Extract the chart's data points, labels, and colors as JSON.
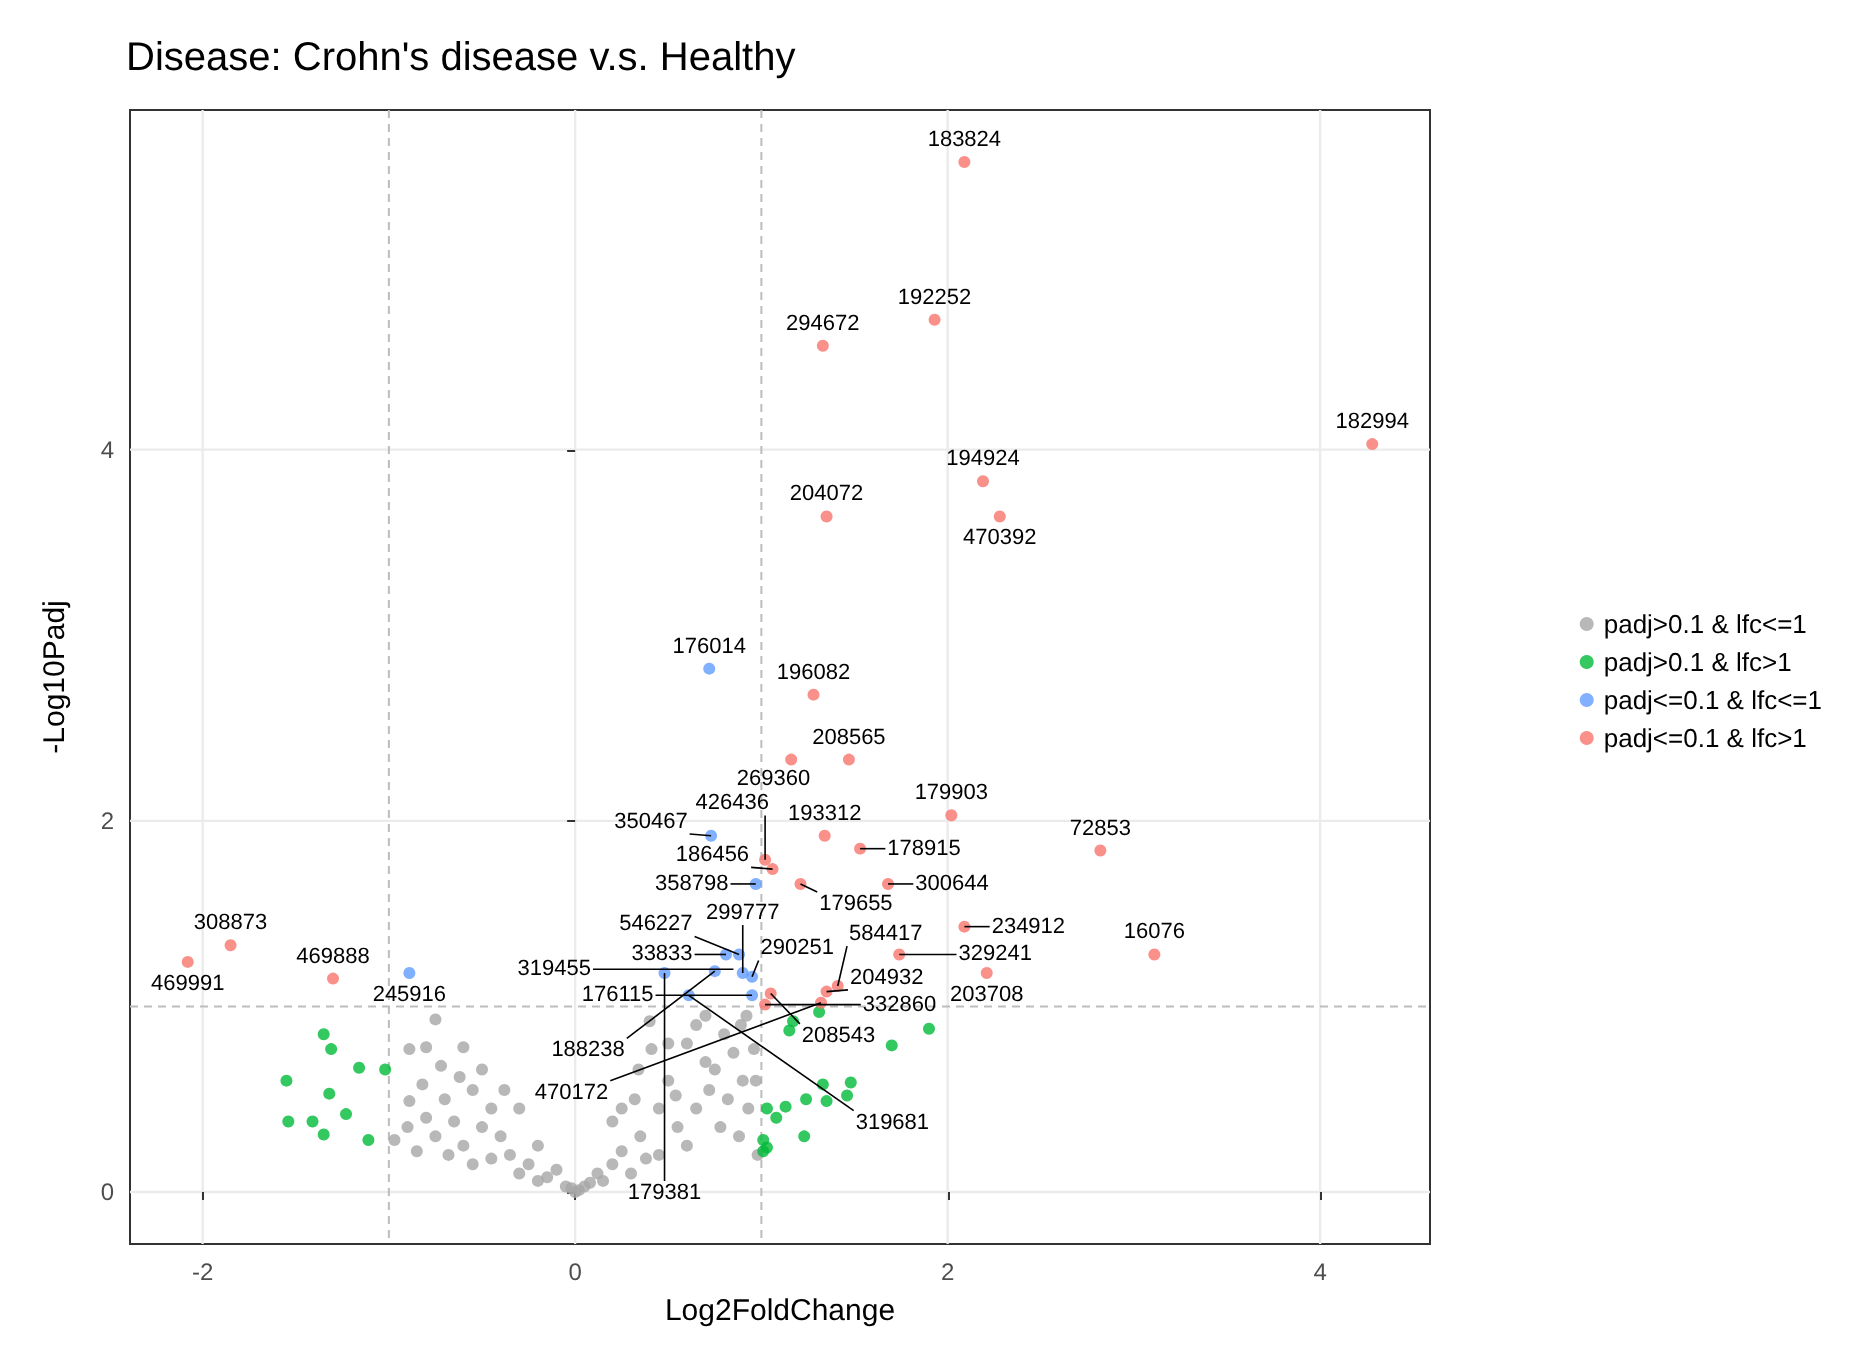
{
  "chart_data": {
    "type": "scatter",
    "title": "Disease: Crohn's disease v.s. Healthy",
    "xlabel": "Log2FoldChange",
    "ylabel": "-Log10Padj",
    "xlim": [
      -2.39,
      4.59
    ],
    "ylim": [
      -0.28,
      5.83
    ],
    "xticks": [
      -2,
      0,
      2,
      4
    ],
    "yticks": [
      0,
      2,
      4
    ],
    "grid": true,
    "legend": "right",
    "marker": "circle",
    "ref_lines": [
      {
        "axis": "x",
        "value": -1,
        "color": "#bdbdbd",
        "line_style": "dashed"
      },
      {
        "axis": "x",
        "value": 1,
        "color": "#bdbdbd",
        "line_style": "dashed"
      },
      {
        "axis": "y",
        "value": 1,
        "color": "#bdbdbd",
        "line_style": "dashed"
      }
    ],
    "series": [
      {
        "name": "padj>0.1 & lfc<=1",
        "color": "#a6a6a6",
        "x": [
          -0.97,
          -0.89,
          -0.89,
          -0.8,
          -0.75,
          -0.6,
          -0.5,
          -0.55,
          -0.7,
          -0.8,
          -0.9,
          -0.75,
          -0.65,
          -0.6,
          -0.5,
          -0.45,
          -0.4,
          -0.35,
          -0.3,
          -0.25,
          -0.2,
          -0.15,
          -0.1,
          -0.05,
          -0.45,
          -0.55,
          -0.68,
          -0.85,
          -0.3,
          -0.2,
          -0.38,
          -0.62,
          -0.72,
          -0.82,
          0,
          0.02,
          0.05,
          -0.02,
          0.08,
          0.12,
          0.15,
          0.2,
          0.2,
          0.25,
          0.3,
          0.34,
          0.35,
          0.4,
          0.41,
          0.45,
          0.45,
          0.5,
          0.54,
          0.55,
          0.6,
          0.6,
          0.65,
          0.65,
          0.7,
          0.72,
          0.75,
          0.78,
          0.8,
          0.82,
          0.85,
          0.88,
          0.89,
          0.9,
          0.93,
          0.96,
          0.97,
          0.98,
          0.25,
          0.32,
          0.38,
          0.5,
          0.7,
          0.92
        ],
        "values": [
          0.28,
          0.49,
          0.77,
          0.78,
          0.93,
          0.78,
          0.66,
          0.55,
          0.5,
          0.4,
          0.35,
          0.3,
          0.38,
          0.25,
          0.35,
          0.45,
          0.3,
          0.2,
          0.45,
          0.15,
          0.25,
          0.08,
          0.12,
          0.03,
          0.18,
          0.15,
          0.2,
          0.22,
          0.1,
          0.06,
          0.55,
          0.62,
          0.68,
          0.58,
          0,
          0.01,
          0.03,
          0.02,
          0.05,
          0.1,
          0.06,
          0.38,
          0.15,
          0.22,
          0.1,
          0.66,
          0.3,
          0.92,
          0.77,
          0.45,
          0.2,
          0.6,
          0.52,
          0.35,
          0.8,
          0.25,
          0.9,
          0.45,
          0.7,
          0.55,
          0.66,
          0.35,
          0.85,
          0.5,
          0.75,
          0.3,
          0.9,
          0.6,
          0.45,
          0.77,
          0.6,
          0.2,
          0.45,
          0.5,
          0.18,
          0.8,
          0.95,
          0.95
        ]
      },
      {
        "name": "padj>0.1 & lfc>1",
        "color": "#00ba38",
        "x": [
          -1.35,
          -1.31,
          -1.16,
          -1.02,
          -1.55,
          -1.32,
          -1.23,
          -1.54,
          -1.41,
          -1.35,
          -1.11,
          1.31,
          1.17,
          1.15,
          1.9,
          1.7,
          1.48,
          1.46,
          1.33,
          1.35,
          1.24,
          1.13,
          1.03,
          1.08,
          1.23,
          1.01,
          1.03,
          1.01
        ],
        "values": [
          0.85,
          0.77,
          0.67,
          0.66,
          0.6,
          0.53,
          0.42,
          0.38,
          0.38,
          0.31,
          0.28,
          0.97,
          0.92,
          0.87,
          0.88,
          0.79,
          0.59,
          0.52,
          0.58,
          0.49,
          0.5,
          0.46,
          0.45,
          0.4,
          0.3,
          0.28,
          0.24,
          0.22
        ]
      },
      {
        "name": "padj<=0.1 & lfc<=1",
        "color": "#619cff",
        "x": [
          0.72,
          0.73,
          0.97,
          0.81,
          0.88,
          0.75,
          0.48,
          0.9,
          0.95,
          0.95,
          0.61,
          -0.89
        ],
        "values": [
          2.82,
          1.92,
          1.66,
          1.28,
          1.28,
          1.19,
          1.18,
          1.18,
          1.16,
          1.06,
          1.06,
          1.18
        ]
      },
      {
        "name": "padj<=0.1 & lfc>1",
        "color": "#f8766d",
        "x": [
          2.09,
          1.93,
          1.33,
          4.28,
          2.19,
          2.28,
          1.35,
          1.28,
          1.16,
          1.47,
          2.02,
          1.34,
          1.53,
          2.82,
          1.06,
          1.02,
          1.21,
          1.68,
          2.09,
          1.74,
          3.11,
          2.21,
          1.05,
          1.41,
          1.35,
          1.32,
          1.02,
          -1.85,
          -2.08,
          -1.3
        ],
        "values": [
          5.55,
          4.7,
          4.56,
          4.03,
          3.83,
          3.64,
          3.64,
          2.68,
          2.33,
          2.33,
          2.03,
          1.92,
          1.85,
          1.84,
          1.74,
          1.79,
          1.66,
          1.66,
          1.43,
          1.28,
          1.28,
          1.18,
          1.07,
          1.11,
          1.08,
          1.02,
          1.01,
          1.33,
          1.24,
          1.15
        ]
      }
    ],
    "annotations": [
      {
        "text": "183824",
        "x": 2.09,
        "y": 5.55
      },
      {
        "text": "192252",
        "x": 1.93,
        "y": 4.7
      },
      {
        "text": "294672",
        "x": 1.33,
        "y": 4.56
      },
      {
        "text": "182994",
        "x": 4.28,
        "y": 4.03
      },
      {
        "text": "194924",
        "x": 2.19,
        "y": 3.83
      },
      {
        "text": "470392",
        "x": 2.28,
        "y": 3.64
      },
      {
        "text": "204072",
        "x": 1.35,
        "y": 3.64
      },
      {
        "text": "176014",
        "x": 0.72,
        "y": 2.82
      },
      {
        "text": "196082",
        "x": 1.28,
        "y": 2.68
      },
      {
        "text": "269360",
        "x": 1.16,
        "y": 2.33
      },
      {
        "text": "208565",
        "x": 1.47,
        "y": 2.33
      },
      {
        "text": "179903",
        "x": 2.02,
        "y": 2.03
      },
      {
        "text": "350467",
        "x": 0.73,
        "y": 1.92
      },
      {
        "text": "193312",
        "x": 1.34,
        "y": 1.92
      },
      {
        "text": "178915",
        "x": 1.53,
        "y": 1.85
      },
      {
        "text": "72853",
        "x": 2.82,
        "y": 1.84
      },
      {
        "text": "186456",
        "x": 1.06,
        "y": 1.74
      },
      {
        "text": "426436",
        "x": 1.02,
        "y": 1.79
      },
      {
        "text": "358798",
        "x": 0.97,
        "y": 1.66
      },
      {
        "text": "179655",
        "x": 1.21,
        "y": 1.66
      },
      {
        "text": "300644",
        "x": 1.68,
        "y": 1.66
      },
      {
        "text": "234912",
        "x": 2.09,
        "y": 1.43
      },
      {
        "text": "329241",
        "x": 1.74,
        "y": 1.28
      },
      {
        "text": "16076",
        "x": 3.11,
        "y": 1.28
      },
      {
        "text": "203708",
        "x": 2.21,
        "y": 1.18
      },
      {
        "text": "33833",
        "x": 0.81,
        "y": 1.28
      },
      {
        "text": "546227",
        "x": 0.88,
        "y": 1.28
      },
      {
        "text": "188238",
        "x": 0.75,
        "y": 1.19
      },
      {
        "text": "179381",
        "x": 0.48,
        "y": 1.18
      },
      {
        "text": "319455",
        "x": 0.85,
        "y": 1.2
      },
      {
        "text": "299777",
        "x": 0.9,
        "y": 1.18
      },
      {
        "text": "290251",
        "x": 0.95,
        "y": 1.16
      },
      {
        "text": "208543",
        "x": 1.05,
        "y": 1.07
      },
      {
        "text": "584417",
        "x": 1.41,
        "y": 1.11
      },
      {
        "text": "204932",
        "x": 1.35,
        "y": 1.08
      },
      {
        "text": "470172",
        "x": 1.32,
        "y": 1.02
      },
      {
        "text": "332860",
        "x": 1.02,
        "y": 1.01
      },
      {
        "text": "176115",
        "x": 0.95,
        "y": 1.06
      },
      {
        "text": "319681",
        "x": 0.61,
        "y": 1.06
      },
      {
        "text": "308873",
        "x": -1.85,
        "y": 1.33
      },
      {
        "text": "469991",
        "x": -2.08,
        "y": 1.24
      },
      {
        "text": "469888",
        "x": -1.3,
        "y": 1.15
      },
      {
        "text": "245916",
        "x": -0.89,
        "y": 1.18
      }
    ]
  }
}
